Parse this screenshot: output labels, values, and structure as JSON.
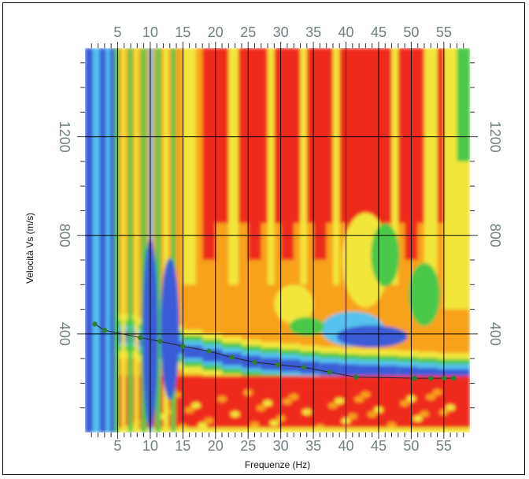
{
  "chart_data": {
    "type": "heatmap",
    "title": "",
    "xlabel": "Frequenze (Hz)",
    "ylabel": "Velocità Vs (m/s)",
    "xlim": [
      0,
      59
    ],
    "ylim": [
      0,
      1560
    ],
    "x_ticks": [
      5,
      10,
      15,
      20,
      25,
      30,
      35,
      40,
      45,
      50,
      55
    ],
    "y_ticks": [
      400,
      800,
      1200
    ],
    "grid": true,
    "colors": {
      "low": "#3a5bd6",
      "mid_low": "#55c3ee",
      "mid": "#49c84a",
      "mid_high": "#f2e63a",
      "high": "#f8a21c",
      "max": "#ee2a1e",
      "curve": "#2e7d32"
    },
    "series": [
      {
        "type": "line",
        "x": [
          1.5,
          3.0,
          8.5,
          11.5,
          15.0,
          19.0,
          22.5,
          26.0,
          29.5,
          33.5,
          37.5,
          41.5,
          50.5,
          53.0,
          55.0,
          56.5
        ],
        "y": [
          440,
          415,
          385,
          370,
          350,
          330,
          305,
          285,
          275,
          265,
          245,
          225,
          220,
          220,
          220,
          220
        ]
      }
    ]
  }
}
